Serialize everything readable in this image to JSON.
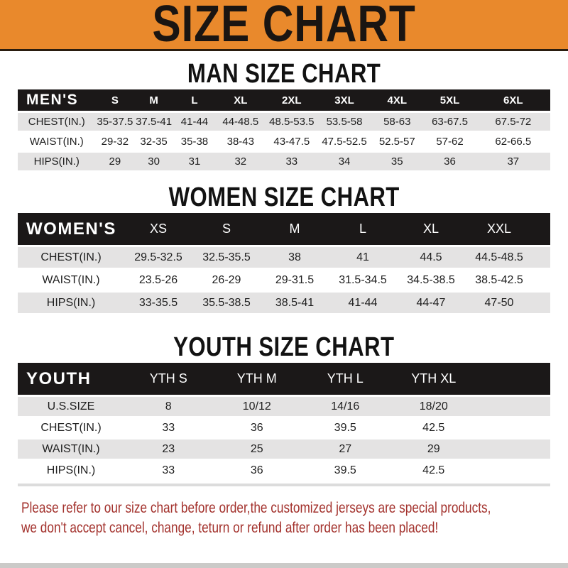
{
  "colors": {
    "banner_bg": "#E9892C",
    "banner_text": "#1A1512",
    "bar_bg": "#1B1818",
    "bar_text": "#FFFFFF",
    "stripe": "#E4E3E3",
    "text": "#1E1E1E",
    "footer_text": "#A3322D"
  },
  "banner": {
    "title": "SIZE CHART"
  },
  "sections": [
    {
      "heading": "MAN SIZE CHART",
      "table": {
        "label": "MEN'S",
        "columns": [
          "S",
          "M",
          "L",
          "XL",
          "2XL",
          "3XL",
          "4XL",
          "5XL",
          "6XL"
        ],
        "rows": [
          {
            "label": "CHEST(IN.)",
            "values": [
              "35-37.5",
              "37.5-41",
              "41-44",
              "44-48.5",
              "48.5-53.5",
              "53.5-58",
              "58-63",
              "63-67.5",
              "67.5-72"
            ]
          },
          {
            "label": "WAIST(IN.)",
            "values": [
              "29-32",
              "32-35",
              "35-38",
              "38-43",
              "43-47.5",
              "47.5-52.5",
              "52.5-57",
              "57-62",
              "62-66.5"
            ]
          },
          {
            "label": "HIPS(IN.)",
            "values": [
              "29",
              "30",
              "31",
              "32",
              "33",
              "34",
              "35",
              "36",
              "37"
            ]
          }
        ]
      }
    },
    {
      "heading": "WOMEN SIZE CHART",
      "table": {
        "label": "WOMEN'S",
        "columns": [
          "XS",
          "S",
          "M",
          "L",
          "XL",
          "XXL"
        ],
        "rows": [
          {
            "label": "CHEST(IN.)",
            "values": [
              "29.5-32.5",
              "32.5-35.5",
              "38",
              "41",
              "44.5",
              "44.5-48.5"
            ]
          },
          {
            "label": "WAIST(IN.)",
            "values": [
              "23.5-26",
              "26-29",
              "29-31.5",
              "31.5-34.5",
              "34.5-38.5",
              "38.5-42.5"
            ]
          },
          {
            "label": "HIPS(IN.)",
            "values": [
              "33-35.5",
              "35.5-38.5",
              "38.5-41",
              "41-44",
              "44-47",
              "47-50"
            ]
          }
        ]
      }
    },
    {
      "heading": "YOUTH SIZE CHART",
      "table": {
        "label": "YOUTH",
        "columns": [
          "YTH S",
          "YTH M",
          "YTH L",
          "YTH XL"
        ],
        "rows": [
          {
            "label": "U.S.SIZE",
            "values": [
              "8",
              "10/12",
              "14/16",
              "18/20"
            ]
          },
          {
            "label": "CHEST(IN.)",
            "values": [
              "33",
              "36",
              "39.5",
              "42.5"
            ]
          },
          {
            "label": "WAIST(IN.)",
            "values": [
              "23",
              "25",
              "27",
              "29"
            ]
          },
          {
            "label": "HIPS(IN.)",
            "values": [
              "33",
              "36",
              "39.5",
              "42.5"
            ]
          }
        ]
      }
    }
  ],
  "footer": {
    "line1": "Please refer to our size chart before order,the customized jerseys are special products,",
    "line2": "we don't accept cancel, change, teturn or refund after order has been placed!"
  }
}
